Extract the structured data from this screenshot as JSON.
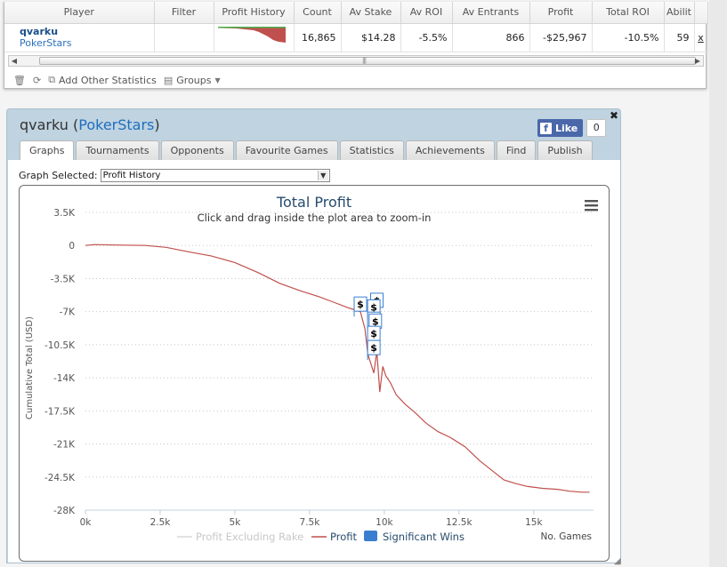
{
  "stats": {
    "columns": [
      "Player",
      "Filter",
      "Profit History",
      "Count",
      "Av Stake",
      "Av ROI",
      "Av Entrants",
      "Profit",
      "Total ROI",
      "Abilit"
    ],
    "row": {
      "player": "qvarku",
      "site": "PokerStars",
      "filter": "",
      "count": "16,865",
      "av_stake": "$14.28",
      "av_roi": "-5.5%",
      "av_entrants": "866",
      "profit": "-$25,967",
      "total_roi": "-10.5%",
      "ability": "59",
      "remove": "x"
    },
    "toolbar": {
      "add_stats": "Add Other Statistics",
      "groups": "Groups"
    }
  },
  "panel": {
    "player": "qvarku",
    "site": "PokerStars",
    "fb_like": "Like",
    "fb_count": "0",
    "close": "✖",
    "tabs": [
      "Graphs",
      "Tournaments",
      "Opponents",
      "Favourite Games",
      "Statistics",
      "Achievements",
      "Find",
      "Publish"
    ],
    "graph_label": "Graph Selected:",
    "graph_value": "Profit History"
  },
  "chart_data": {
    "type": "line",
    "title": "Total Profit",
    "subtitle": "Click and drag inside the plot area to zoom-in",
    "xlabel": "No. Games",
    "ylabel": "Cumulative Total (USD)",
    "xlim": [
      0,
      17000
    ],
    "ylim": [
      -28000,
      3500
    ],
    "xticks": [
      0,
      2500,
      5000,
      7500,
      10000,
      12500,
      15000
    ],
    "xtick_labels": [
      "0k",
      "2.5k",
      "5k",
      "7.5k",
      "10k",
      "12.5k",
      "15k"
    ],
    "yticks": [
      3500,
      0,
      -3500,
      -7000,
      -10500,
      -14000,
      -17500,
      -21000,
      -24500,
      -28000
    ],
    "ytick_labels": [
      "3.5K",
      "0",
      "-3.5K",
      "-7K",
      "-10.5K",
      "-14K",
      "-17.5K",
      "-21K",
      "-24.5K",
      "-28K"
    ],
    "grid": true,
    "legend_placement": "bottom",
    "legend": [
      "Profit Excluding Rake",
      "Profit",
      "Significant Wins"
    ],
    "series": [
      {
        "name": "Profit",
        "color": "#c0504d",
        "x": [
          0,
          300,
          1000,
          2000,
          2700,
          3500,
          4200,
          5000,
          5800,
          6500,
          7200,
          7800,
          8300,
          8800,
          9000,
          9200,
          9350,
          9450,
          9550,
          9650,
          9750,
          9850,
          9950,
          10050,
          10200,
          10400,
          10700,
          11000,
          11400,
          11800,
          12200,
          12700,
          13200,
          13600,
          14000,
          14400,
          14800,
          15300,
          15800,
          16200,
          16600,
          16865
        ],
        "y": [
          0,
          100,
          50,
          0,
          -200,
          -700,
          -1100,
          -1800,
          -2900,
          -4000,
          -4800,
          -5400,
          -6000,
          -6600,
          -6800,
          -7000,
          -8800,
          -11500,
          -12500,
          -13500,
          -11200,
          -15500,
          -12800,
          -13800,
          -14500,
          -15800,
          -16800,
          -17600,
          -18800,
          -19700,
          -20300,
          -21300,
          -22800,
          -23800,
          -24800,
          -25200,
          -25500,
          -25700,
          -25800,
          -26000,
          -26100,
          -26100
        ]
      },
      {
        "name": "Profit Excluding Rake",
        "color": "#d8d8d8",
        "x": [],
        "y": []
      }
    ],
    "significant_wins": [
      {
        "x": 9200,
        "y": -6200
      },
      {
        "x": 9750,
        "y": -5800
      },
      {
        "x": 9650,
        "y": -6500
      },
      {
        "x": 9650,
        "y": -7800
      },
      {
        "x": 9700,
        "y": -8000
      },
      {
        "x": 9650,
        "y": -9300
      },
      {
        "x": 9650,
        "y": -10800
      }
    ]
  },
  "colors": {
    "profit_line": "#c0504d",
    "significant_wins": "#3a7fcf",
    "negative_text": "#c0392b",
    "link": "#1a4f8b",
    "panel_bg": "#bfd3e0",
    "facebook": "#4a67a9"
  },
  "icons": [
    "trash-icon",
    "refresh-icon",
    "copy-icon",
    "groups-icon",
    "chevron-down-icon",
    "menu-icon",
    "facebook-icon",
    "close-icon"
  ]
}
